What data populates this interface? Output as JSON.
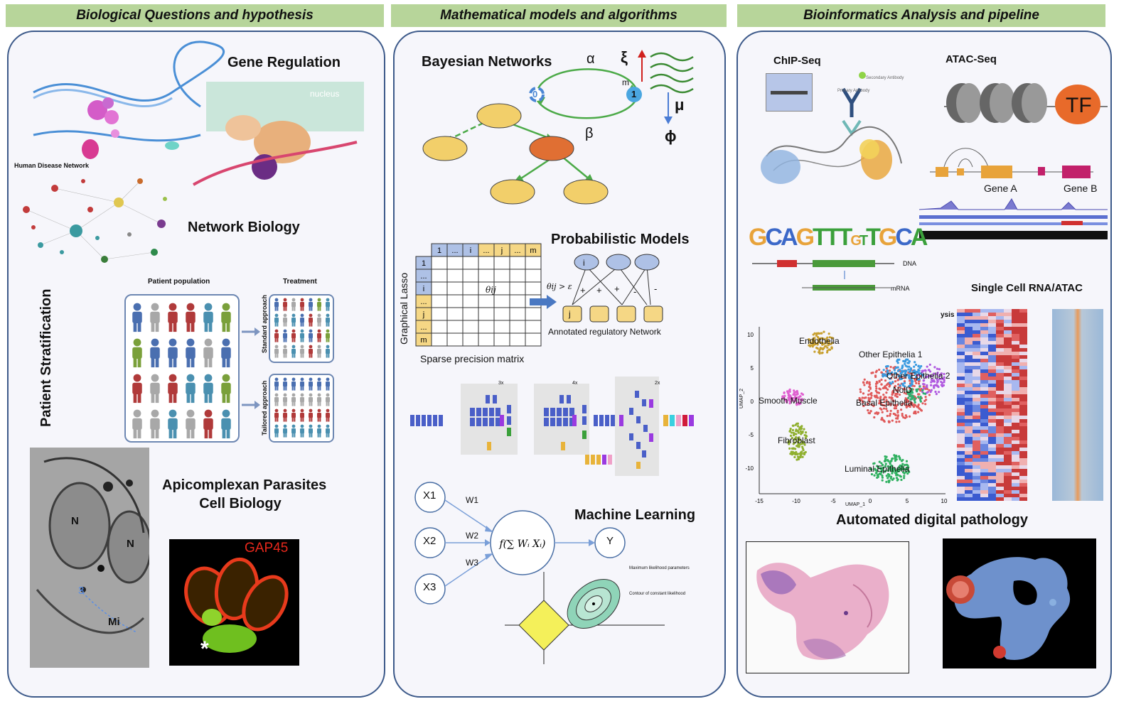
{
  "headers": {
    "col1": "Biological Questions and hypothesis",
    "col2": "Mathematical models and algorithms",
    "col3": "Bioinformatics Analysis and pipeline"
  },
  "col1": {
    "gene_regulation": "Gene Regulation",
    "network_biology": "Network Biology",
    "human_disease_network": "Human Disease Network",
    "patient_stratification": "Patient Stratification",
    "patient_population": "Patient population",
    "treatment": "Treatment",
    "standard_approach": "Standard approach",
    "tailored_approach": "Tailored approach",
    "apicomplexan_line1": "Apicomplexan Parasites",
    "apicomplexan_line2": "Cell Biology",
    "em_labels": {
      "n1": "N",
      "n2": "N",
      "three": "3",
      "mi": "Mi"
    },
    "gap45": "GAP45",
    "asterisk": "*",
    "nucleus": "nucleus"
  },
  "col2": {
    "bayesian_networks": "Bayesian Networks",
    "alpha": "α",
    "beta": "β",
    "xi": "ξ",
    "mu": "μ",
    "phi": "ϕ",
    "m": "m",
    "state0": "0",
    "state1": "1",
    "probabilistic_models": "Probabilistic Models",
    "graphical_lasso": "Graphical Lasso",
    "sparse_precision_matrix": "Sparse precision matrix",
    "matrix_cols": [
      "1",
      "...",
      "i",
      "...",
      "j",
      "...",
      "m"
    ],
    "matrix_rows": [
      "1",
      "...",
      "i",
      "...",
      "j",
      "...",
      "m"
    ],
    "theta_ij": "θij",
    "threshold": "θij > ε",
    "signs": [
      "+",
      "+",
      "+",
      "-",
      "-"
    ],
    "net_top_i": "i",
    "net_j": "j",
    "annotated_network": "Annotated regulatory  Network",
    "repeat_3x": "3x",
    "repeat_4x": "4x",
    "repeat_2x": "2x",
    "machine_learning": "Machine Learning",
    "inputs": [
      "X1",
      "X2",
      "X3"
    ],
    "weights": [
      "W1",
      "W2",
      "W3"
    ],
    "output": "Y",
    "lasso_max_lik": "Maximum likelihood parameters",
    "lasso_contour": "Contour of constant likelihood"
  },
  "col3": {
    "chip_seq": "ChIP-Seq",
    "atac_seq": "ATAC-Seq",
    "tf": "TF",
    "gene_a": "Gene A",
    "gene_b": "Gene B",
    "primary_antibody": "Primary Antibody",
    "secondary_antibody": "Secondary Antibody",
    "motif": "GCAGTTT GTTGCA",
    "dna": "DNA",
    "mrna": "mRNA",
    "single_cell": "Single Cell RNA/ATAC",
    "ysis": "ysis",
    "clusters": [
      "Endothelia",
      "Other Epithelia 1",
      "Other Epithelia 2",
      "NolD",
      "Basal Epithelia",
      "Smooth Muscle",
      "Fibroblast",
      "Luminal Epithelia"
    ],
    "umap_x": "UMAP_1",
    "umap_y": "UMAP_2",
    "x_ticks": [
      "-15",
      "-10",
      "-5",
      "0",
      "5",
      "10"
    ],
    "y_ticks": [
      "10",
      "5",
      "0",
      "-5",
      "-10"
    ],
    "digital_pathology": "Automated digital pathology"
  },
  "colors": {
    "header_bg": "#b7d59a",
    "panel_border": "#3d5a8a",
    "node_yellow": "#f2cf6a",
    "node_orange": "#e06f33",
    "edge_green": "#4caa48",
    "cell_blue": "#aec1e6",
    "cell_yellow": "#f5d785"
  }
}
